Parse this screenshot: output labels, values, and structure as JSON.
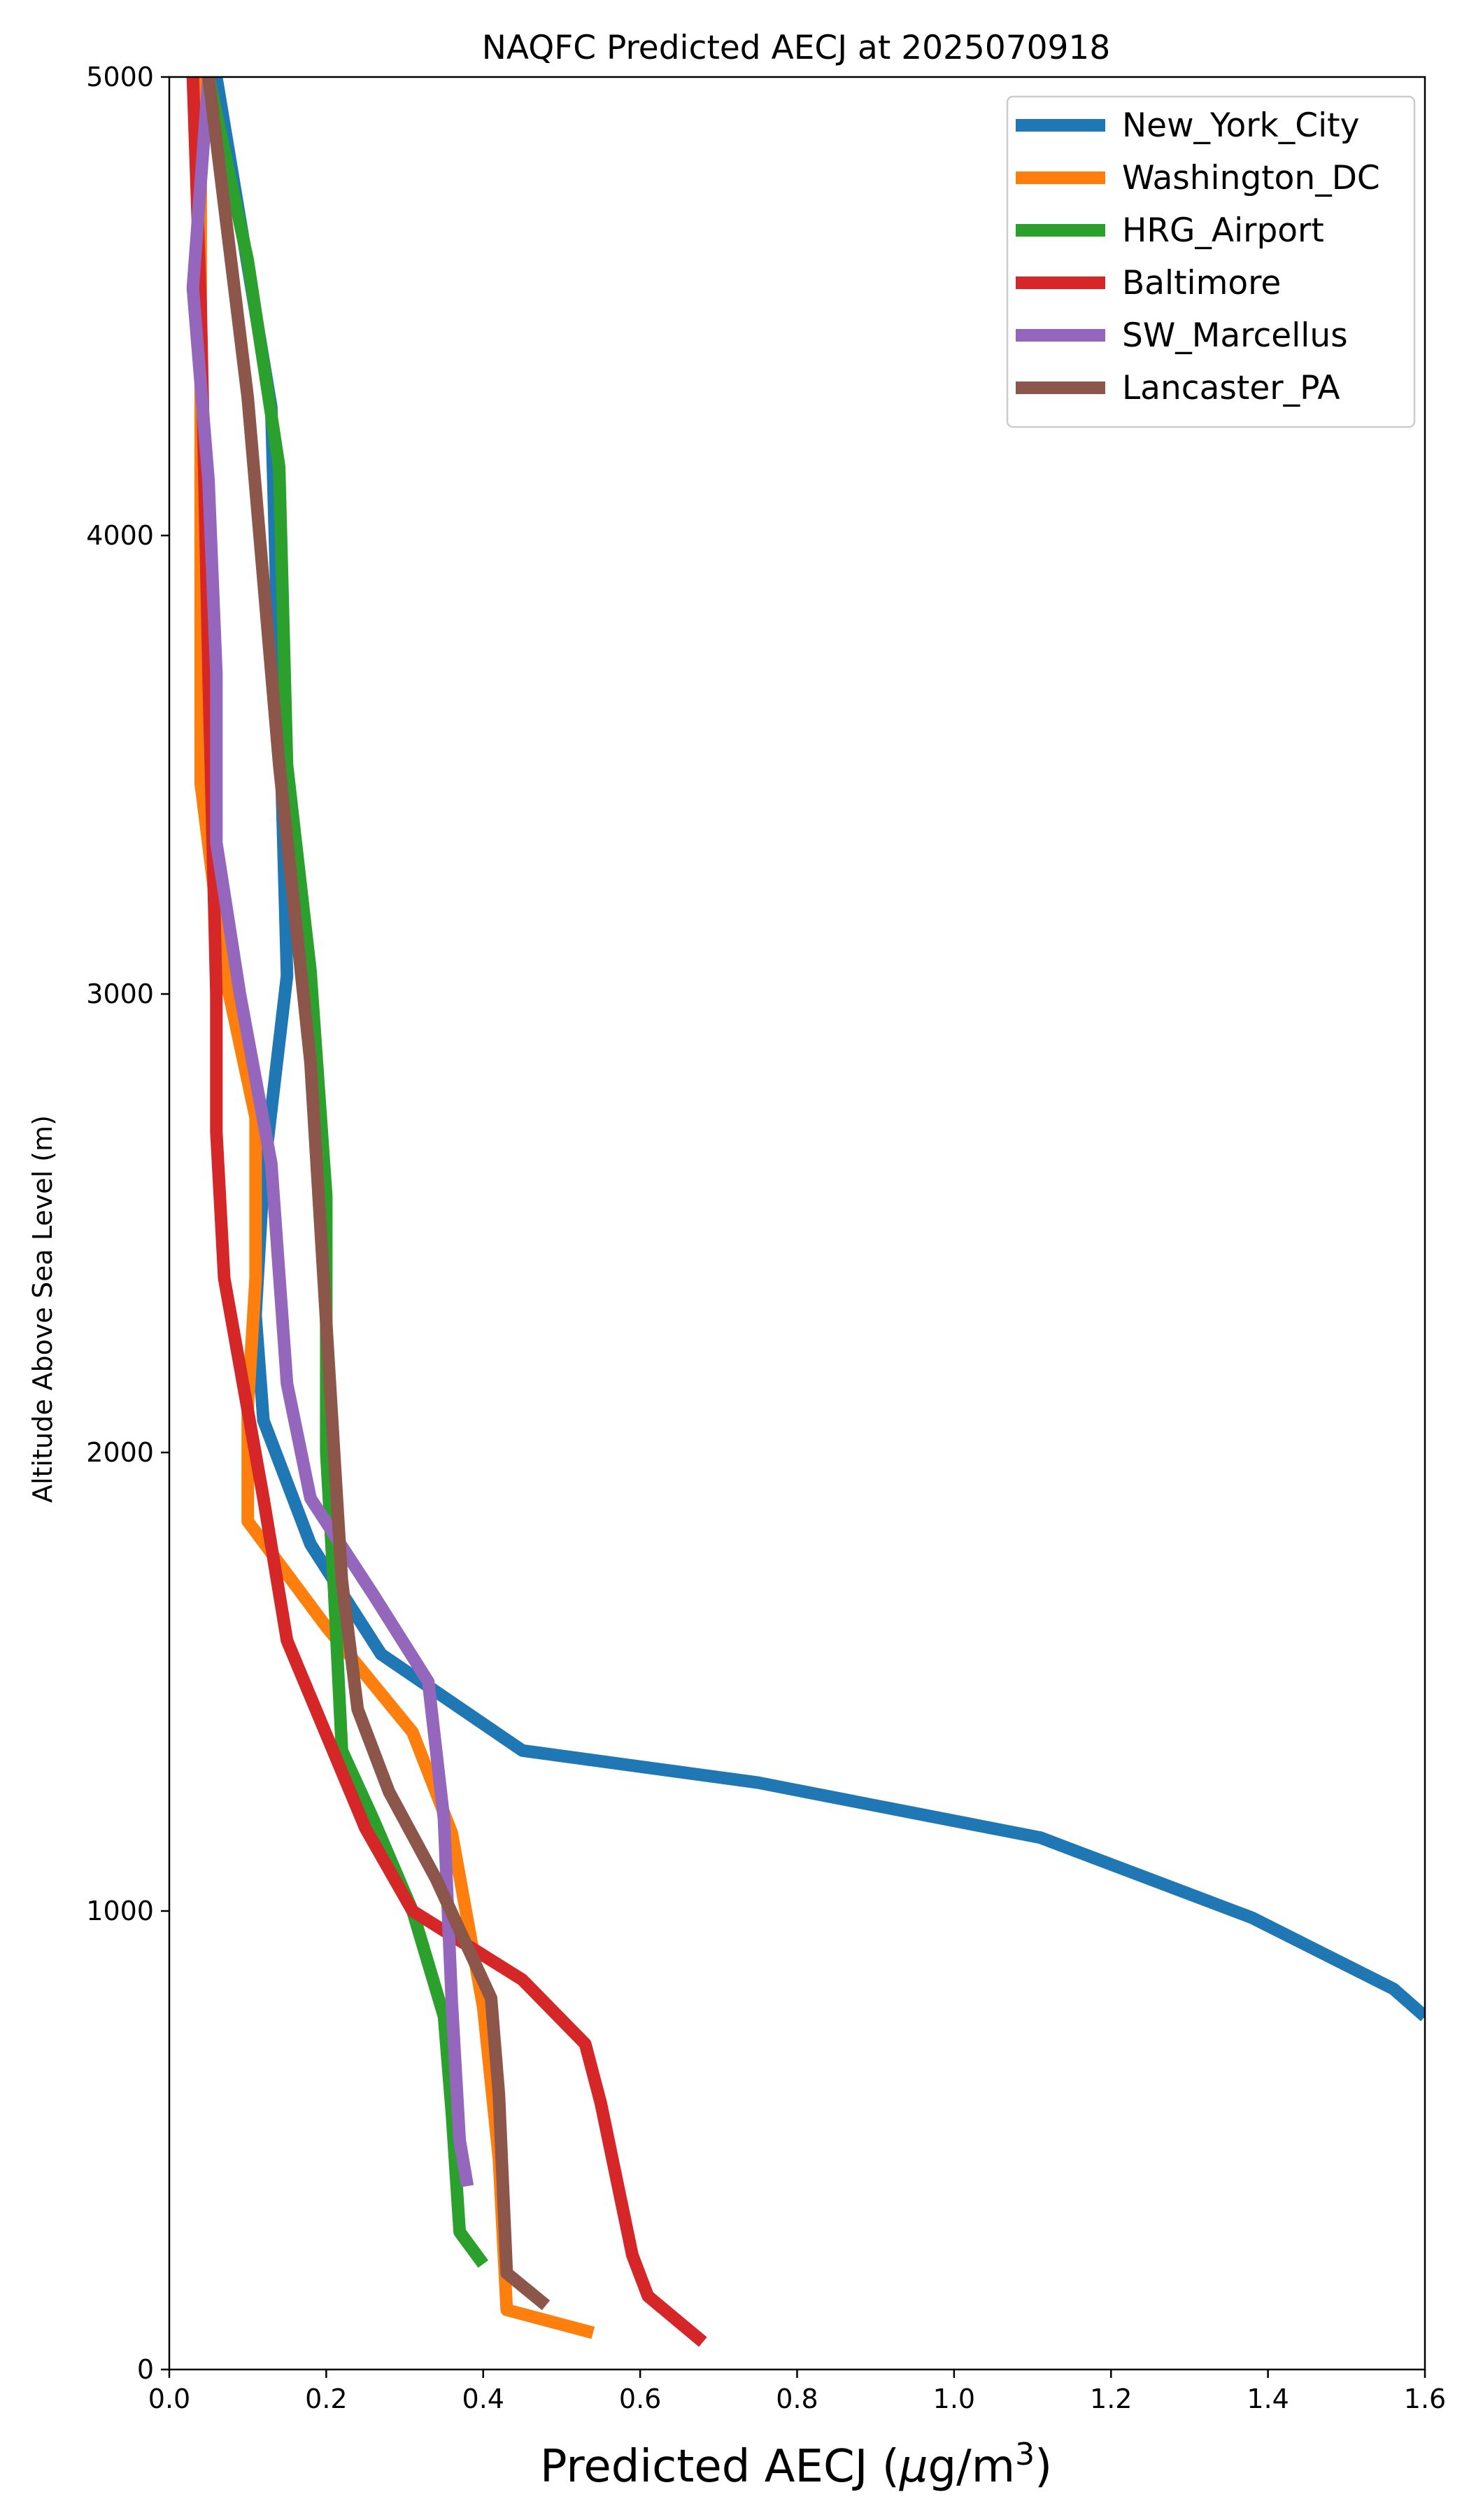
{
  "chart_data": {
    "type": "line",
    "title": "NAQFC Predicted AECJ at 2025070918",
    "xlabel_main": "Predicted AECJ (",
    "xlabel_mu": "μ",
    "xlabel_unit": "g/m",
    "xlabel_sup": "3",
    "xlabel_close": ")",
    "ylabel": "Altitude Above Sea Level (m)",
    "xlim": [
      0,
      1.6
    ],
    "ylim": [
      0,
      5000
    ],
    "xticks": [
      "0.0",
      "0.2",
      "0.4",
      "0.6",
      "0.8",
      "1.0",
      "1.2",
      "1.4",
      "1.6"
    ],
    "yticks": [
      "0",
      "1000",
      "2000",
      "3000",
      "4000",
      "5000"
    ],
    "legend_position": "top-right",
    "grid": false,
    "series": [
      {
        "name": "New_York_City",
        "color": "#1f77b4",
        "points": [
          [
            0.06,
            5000
          ],
          [
            0.13,
            4280
          ],
          [
            0.15,
            3040
          ],
          [
            0.12,
            2600
          ],
          [
            0.11,
            2300
          ],
          [
            0.12,
            2070
          ],
          [
            0.18,
            1800
          ],
          [
            0.27,
            1560
          ],
          [
            0.45,
            1350
          ],
          [
            0.75,
            1280
          ],
          [
            1.11,
            1160
          ],
          [
            1.38,
            985
          ],
          [
            1.56,
            830
          ],
          [
            1.6,
            770
          ]
        ]
      },
      {
        "name": "Washington_DC",
        "color": "#ff7f0e",
        "points": [
          [
            0.04,
            5000
          ],
          [
            0.04,
            4300
          ],
          [
            0.04,
            3460
          ],
          [
            0.07,
            3050
          ],
          [
            0.11,
            2730
          ],
          [
            0.11,
            2380
          ],
          [
            0.1,
            2100
          ],
          [
            0.1,
            1850
          ],
          [
            0.2,
            1620
          ],
          [
            0.31,
            1390
          ],
          [
            0.36,
            1170
          ],
          [
            0.4,
            790
          ],
          [
            0.42,
            460
          ],
          [
            0.43,
            130
          ],
          [
            0.54,
            80
          ]
        ]
      },
      {
        "name": "HRG_Airport",
        "color": "#2ca02c",
        "points": [
          [
            0.05,
            5000
          ],
          [
            0.1,
            4600
          ],
          [
            0.14,
            4150
          ],
          [
            0.15,
            3500
          ],
          [
            0.18,
            3050
          ],
          [
            0.2,
            2560
          ],
          [
            0.2,
            2000
          ],
          [
            0.21,
            1700
          ],
          [
            0.22,
            1350
          ],
          [
            0.26,
            1200
          ],
          [
            0.31,
            1000
          ],
          [
            0.35,
            770
          ],
          [
            0.36,
            560
          ],
          [
            0.37,
            300
          ],
          [
            0.4,
            230
          ]
        ]
      },
      {
        "name": "Baltimore",
        "color": "#d62728",
        "points": [
          [
            0.03,
            5000
          ],
          [
            0.04,
            4500
          ],
          [
            0.05,
            3700
          ],
          [
            0.06,
            3000
          ],
          [
            0.06,
            2700
          ],
          [
            0.07,
            2380
          ],
          [
            0.12,
            1900
          ],
          [
            0.15,
            1590
          ],
          [
            0.25,
            1180
          ],
          [
            0.31,
            1000
          ],
          [
            0.45,
            850
          ],
          [
            0.53,
            710
          ],
          [
            0.55,
            580
          ],
          [
            0.59,
            250
          ],
          [
            0.61,
            160
          ],
          [
            0.68,
            60
          ]
        ]
      },
      {
        "name": "SW_Marcellus",
        "color": "#9467bd",
        "points": [
          [
            0.05,
            5000
          ],
          [
            0.03,
            4540
          ],
          [
            0.05,
            4120
          ],
          [
            0.06,
            3700
          ],
          [
            0.06,
            3330
          ],
          [
            0.09,
            3000
          ],
          [
            0.13,
            2630
          ],
          [
            0.15,
            2150
          ],
          [
            0.18,
            1900
          ],
          [
            0.26,
            1690
          ],
          [
            0.33,
            1500
          ],
          [
            0.35,
            1200
          ],
          [
            0.36,
            800
          ],
          [
            0.37,
            500
          ],
          [
            0.38,
            400
          ]
        ]
      },
      {
        "name": "Lancaster_PA",
        "color": "#8c564b",
        "points": [
          [
            0.05,
            5000
          ],
          [
            0.1,
            4300
          ],
          [
            0.14,
            3500
          ],
          [
            0.18,
            2850
          ],
          [
            0.21,
            2000
          ],
          [
            0.22,
            1720
          ],
          [
            0.24,
            1440
          ],
          [
            0.28,
            1260
          ],
          [
            0.34,
            1070
          ],
          [
            0.41,
            810
          ],
          [
            0.42,
            600
          ],
          [
            0.43,
            210
          ],
          [
            0.48,
            140
          ]
        ]
      }
    ]
  }
}
